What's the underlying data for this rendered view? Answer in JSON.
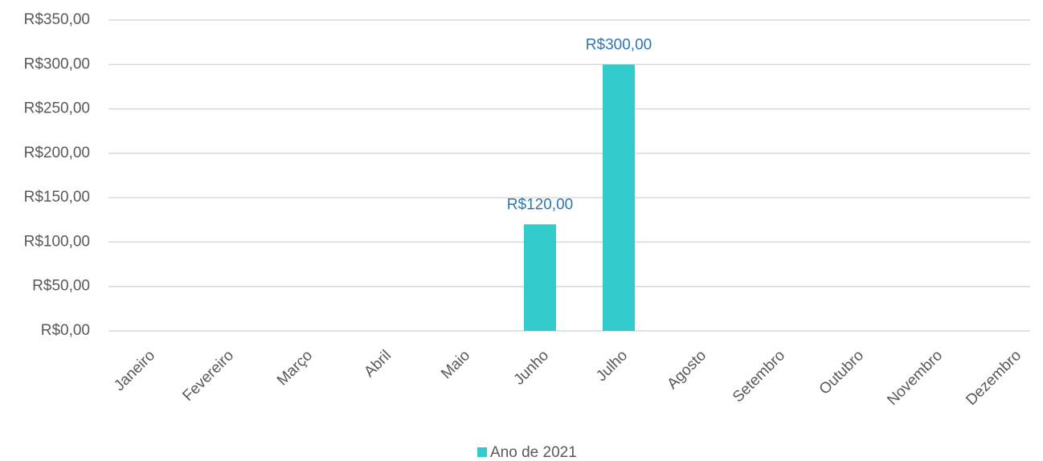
{
  "chart_data": {
    "type": "bar",
    "categories": [
      "Janeiro",
      "Fevereiro",
      "Março",
      "Abril",
      "Maio",
      "Junho",
      "Julho",
      "Agosto",
      "Setembro",
      "Outubro",
      "Novembro",
      "Dezembro"
    ],
    "series": [
      {
        "name": "Ano de 2021",
        "color": "#33cccc",
        "values": [
          null,
          null,
          null,
          null,
          null,
          120,
          300,
          null,
          null,
          null,
          null,
          null
        ],
        "value_labels": [
          null,
          null,
          null,
          null,
          null,
          "R$120,00",
          "R$300,00",
          null,
          null,
          null,
          null,
          null
        ]
      }
    ],
    "ylim": [
      0,
      350
    ],
    "yticks": [
      {
        "value": 0,
        "label": "R$0,00"
      },
      {
        "value": 50,
        "label": "R$50,00"
      },
      {
        "value": 100,
        "label": "R$100,00"
      },
      {
        "value": 150,
        "label": "R$150,00"
      },
      {
        "value": 200,
        "label": "R$200,00"
      },
      {
        "value": 250,
        "label": "R$250,00"
      },
      {
        "value": 300,
        "label": "R$300,00"
      },
      {
        "value": 350,
        "label": "R$350,00"
      }
    ],
    "grid": true,
    "legend": "bottom"
  }
}
